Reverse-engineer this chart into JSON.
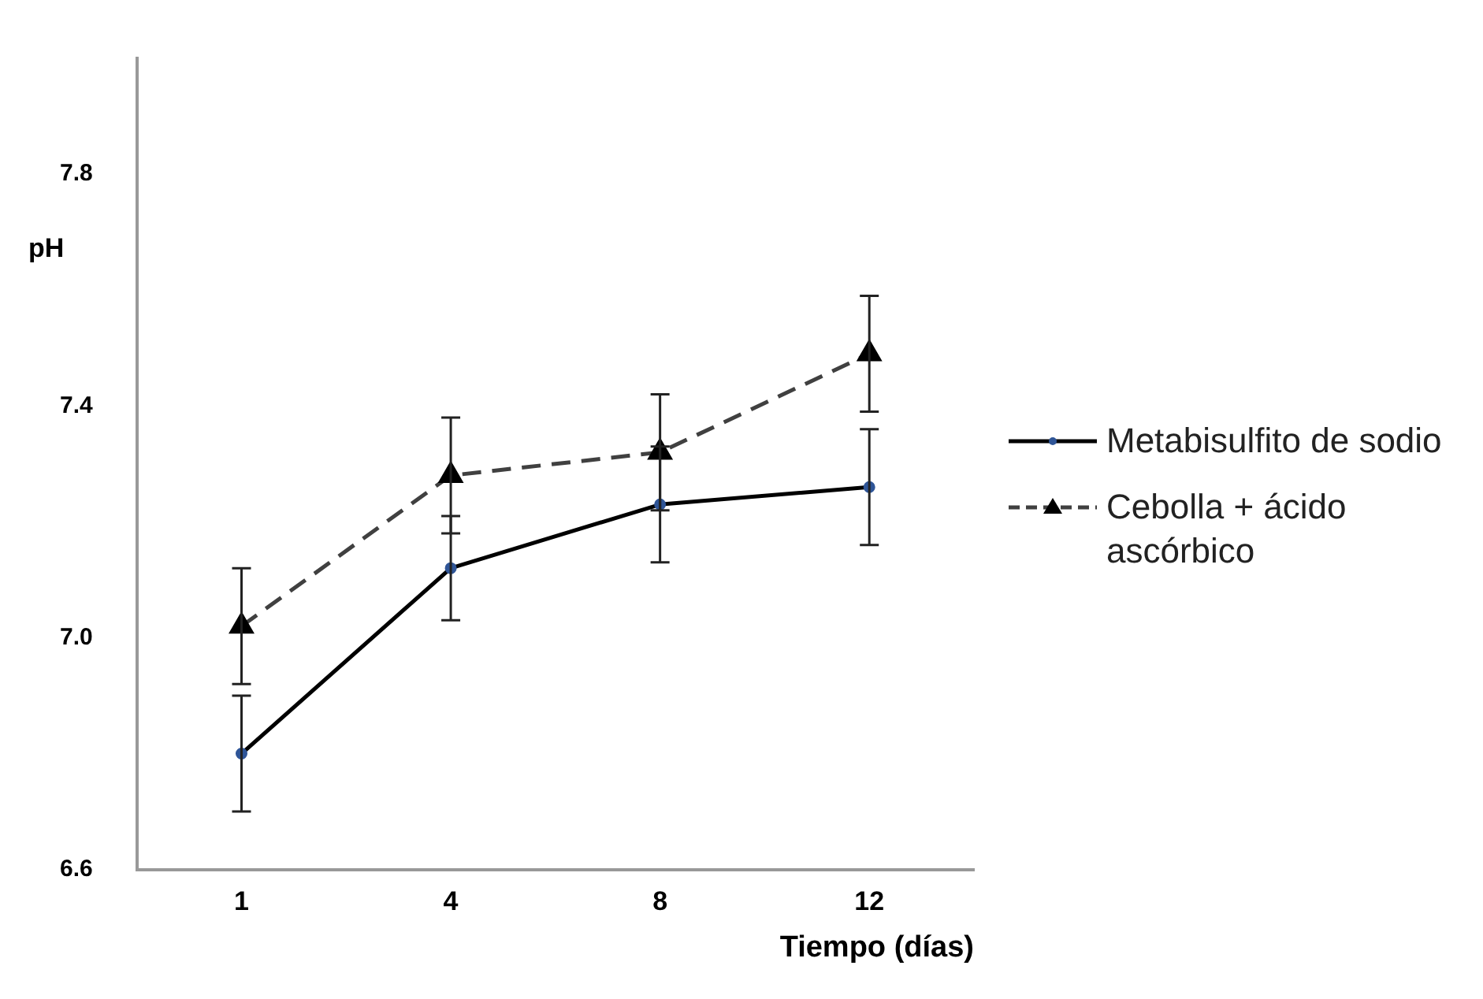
{
  "chart_data": {
    "type": "line",
    "xlabel": "Tiempo (días)",
    "ylabel": "pH",
    "categories": [
      "1",
      "4",
      "8",
      "12"
    ],
    "series": [
      {
        "name": "Metabisulfito de sodio",
        "color": "#000000",
        "marker": "circle",
        "line_style": "solid",
        "values": [
          6.8,
          7.12,
          7.23,
          7.26
        ],
        "errors": [
          0.1,
          0.09,
          0.1,
          0.1
        ]
      },
      {
        "name": "Cebolla + ácido ascórbico",
        "color": "#404040",
        "marker": "triangle",
        "line_style": "dashed",
        "values": [
          7.02,
          7.28,
          7.32,
          7.49
        ],
        "errors": [
          0.1,
          0.1,
          0.1,
          0.1
        ]
      }
    ],
    "ylim": [
      6.6,
      8.0
    ],
    "yticks": [
      6.6,
      {
        "value": 7,
        "label": "7.0"
      },
      7.4,
      7.8
    ],
    "grid": false,
    "legend": "right"
  }
}
